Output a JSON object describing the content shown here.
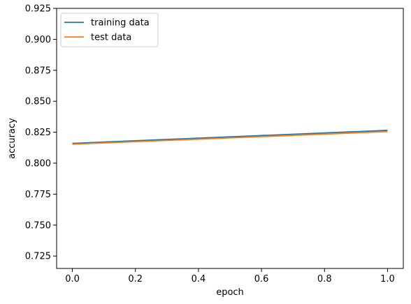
{
  "chart_data": {
    "type": "line",
    "title": "",
    "xlabel": "epoch",
    "ylabel": "accuracy",
    "xlim": [
      -0.05,
      1.05
    ],
    "ylim": [
      0.715,
      0.925
    ],
    "xticks": [
      0.0,
      0.2,
      0.4,
      0.6,
      0.8,
      1.0
    ],
    "xtick_labels": [
      "0.0",
      "0.2",
      "0.4",
      "0.6",
      "0.8",
      "1.0"
    ],
    "yticks": [
      0.725,
      0.75,
      0.775,
      0.8,
      0.825,
      0.85,
      0.875,
      0.9,
      0.925
    ],
    "ytick_labels": [
      "0.725",
      "0.750",
      "0.775",
      "0.800",
      "0.825",
      "0.850",
      "0.875",
      "0.900",
      "0.925"
    ],
    "grid": false,
    "legend_position": "upper-left",
    "x": [
      0,
      1
    ],
    "series": [
      {
        "name": "training data",
        "values": [
          0.816,
          0.8265
        ],
        "color": "#1f77b4"
      },
      {
        "name": "test data",
        "values": [
          0.8153,
          0.8255
        ],
        "color": "#ff7f0e"
      }
    ]
  }
}
